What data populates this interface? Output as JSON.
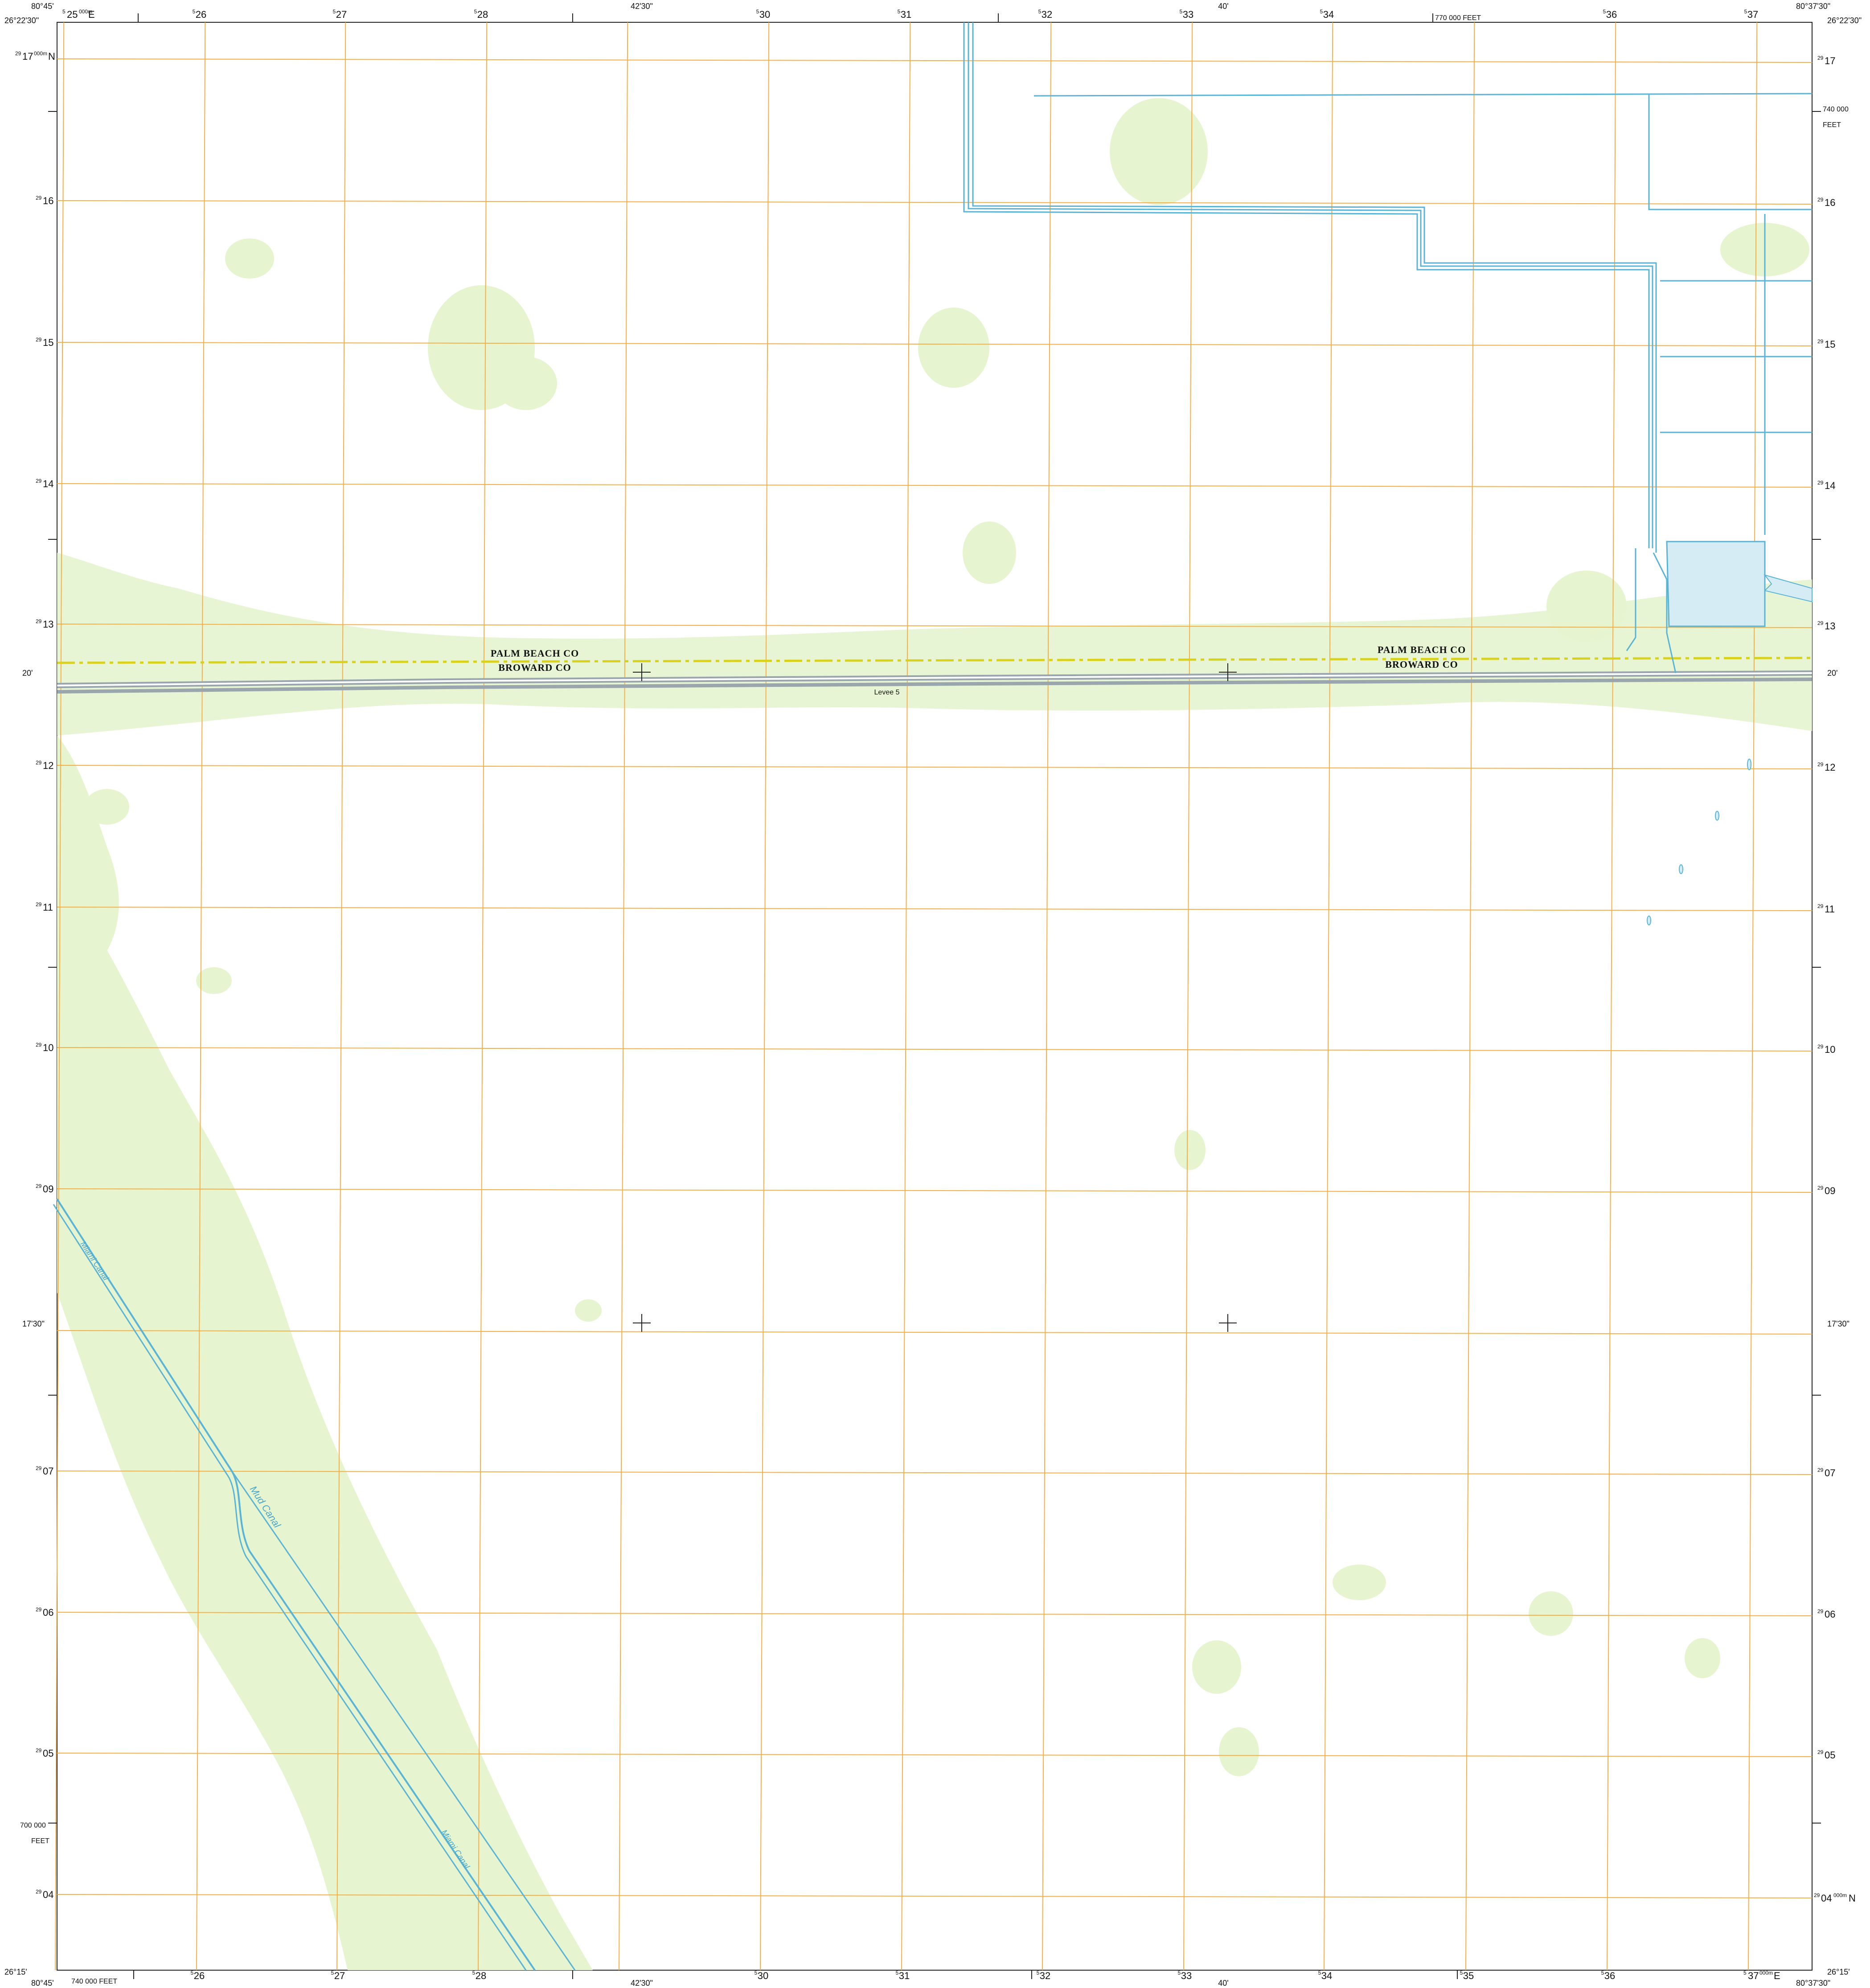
{
  "map": {
    "corners": {
      "nw_lon": "80°45'",
      "nw_lat": "26°22'30\"",
      "ne_lon": "80°37'30\"",
      "ne_lat": "26°22'30\"",
      "sw_lon": "80°45'",
      "sw_lat": "26°15'",
      "se_lon": "80°37'30\"",
      "se_lat": "26°15'"
    },
    "easting_labels_top": [
      "525",
      "526",
      "527",
      "528",
      "530",
      "531",
      "532",
      "533",
      "534",
      "536",
      "537"
    ],
    "easting_labels_bottom": [
      "526",
      "527",
      "528",
      "530",
      "531",
      "532",
      "533",
      "534",
      "535",
      "536",
      "537"
    ],
    "easting_first": {
      "prefix": "5",
      "main": "25",
      "suffix": "000m",
      "unit": "E"
    },
    "easting_last": {
      "prefix": "5",
      "main": "37",
      "suffix": "000m",
      "unit": "E"
    },
    "northing_labels": [
      "2917",
      "2916",
      "2915",
      "2914",
      "2913",
      "2912",
      "2911",
      "2910",
      "2909",
      "2907",
      "2906",
      "2905",
      "2904"
    ],
    "northing_first": {
      "prefix": "29",
      "main": "17",
      "suffix": "000m",
      "unit": "N"
    },
    "northing_last": {
      "prefix": "29",
      "main": "04",
      "suffix": "000m",
      "unit": "N"
    },
    "mid_lon_top": "42'30\"",
    "mid_lon_top2": "40'",
    "mid_lon_bottom": "42'30\"",
    "mid_lon_bottom2": "40'",
    "mid_lat_left": "20'",
    "mid_lat_left2": "17'30\"",
    "mid_lat_right": "20'",
    "mid_lat_right2": "17'30\"",
    "feet_top": "770 000  FEET",
    "feet_right_value": "740 000",
    "feet_right_unit": "FEET",
    "feet_left_value": "700 000",
    "feet_left_unit": "FEET",
    "feet_bottom": "740 000  FEET",
    "county_labels": {
      "pb_west": "PALM BEACH CO",
      "br_west": "BROWARD CO",
      "pb_east": "PALM BEACH CO",
      "br_east": "BROWARD CO"
    },
    "feature_labels": {
      "levee": "Levee 5",
      "miami_canal_upper": "Miami Canal",
      "miami_canal_lower": "Miami Canal",
      "mud_canal": "Mud Canal"
    },
    "colors": {
      "vegetation": "#e6f4cf",
      "water": "#5ab4d6",
      "water_fill": "#d6ecf5",
      "grid": "#f4b04a",
      "boundary_yellow": "#d8d21e",
      "levee": "#9aa6ad"
    }
  }
}
